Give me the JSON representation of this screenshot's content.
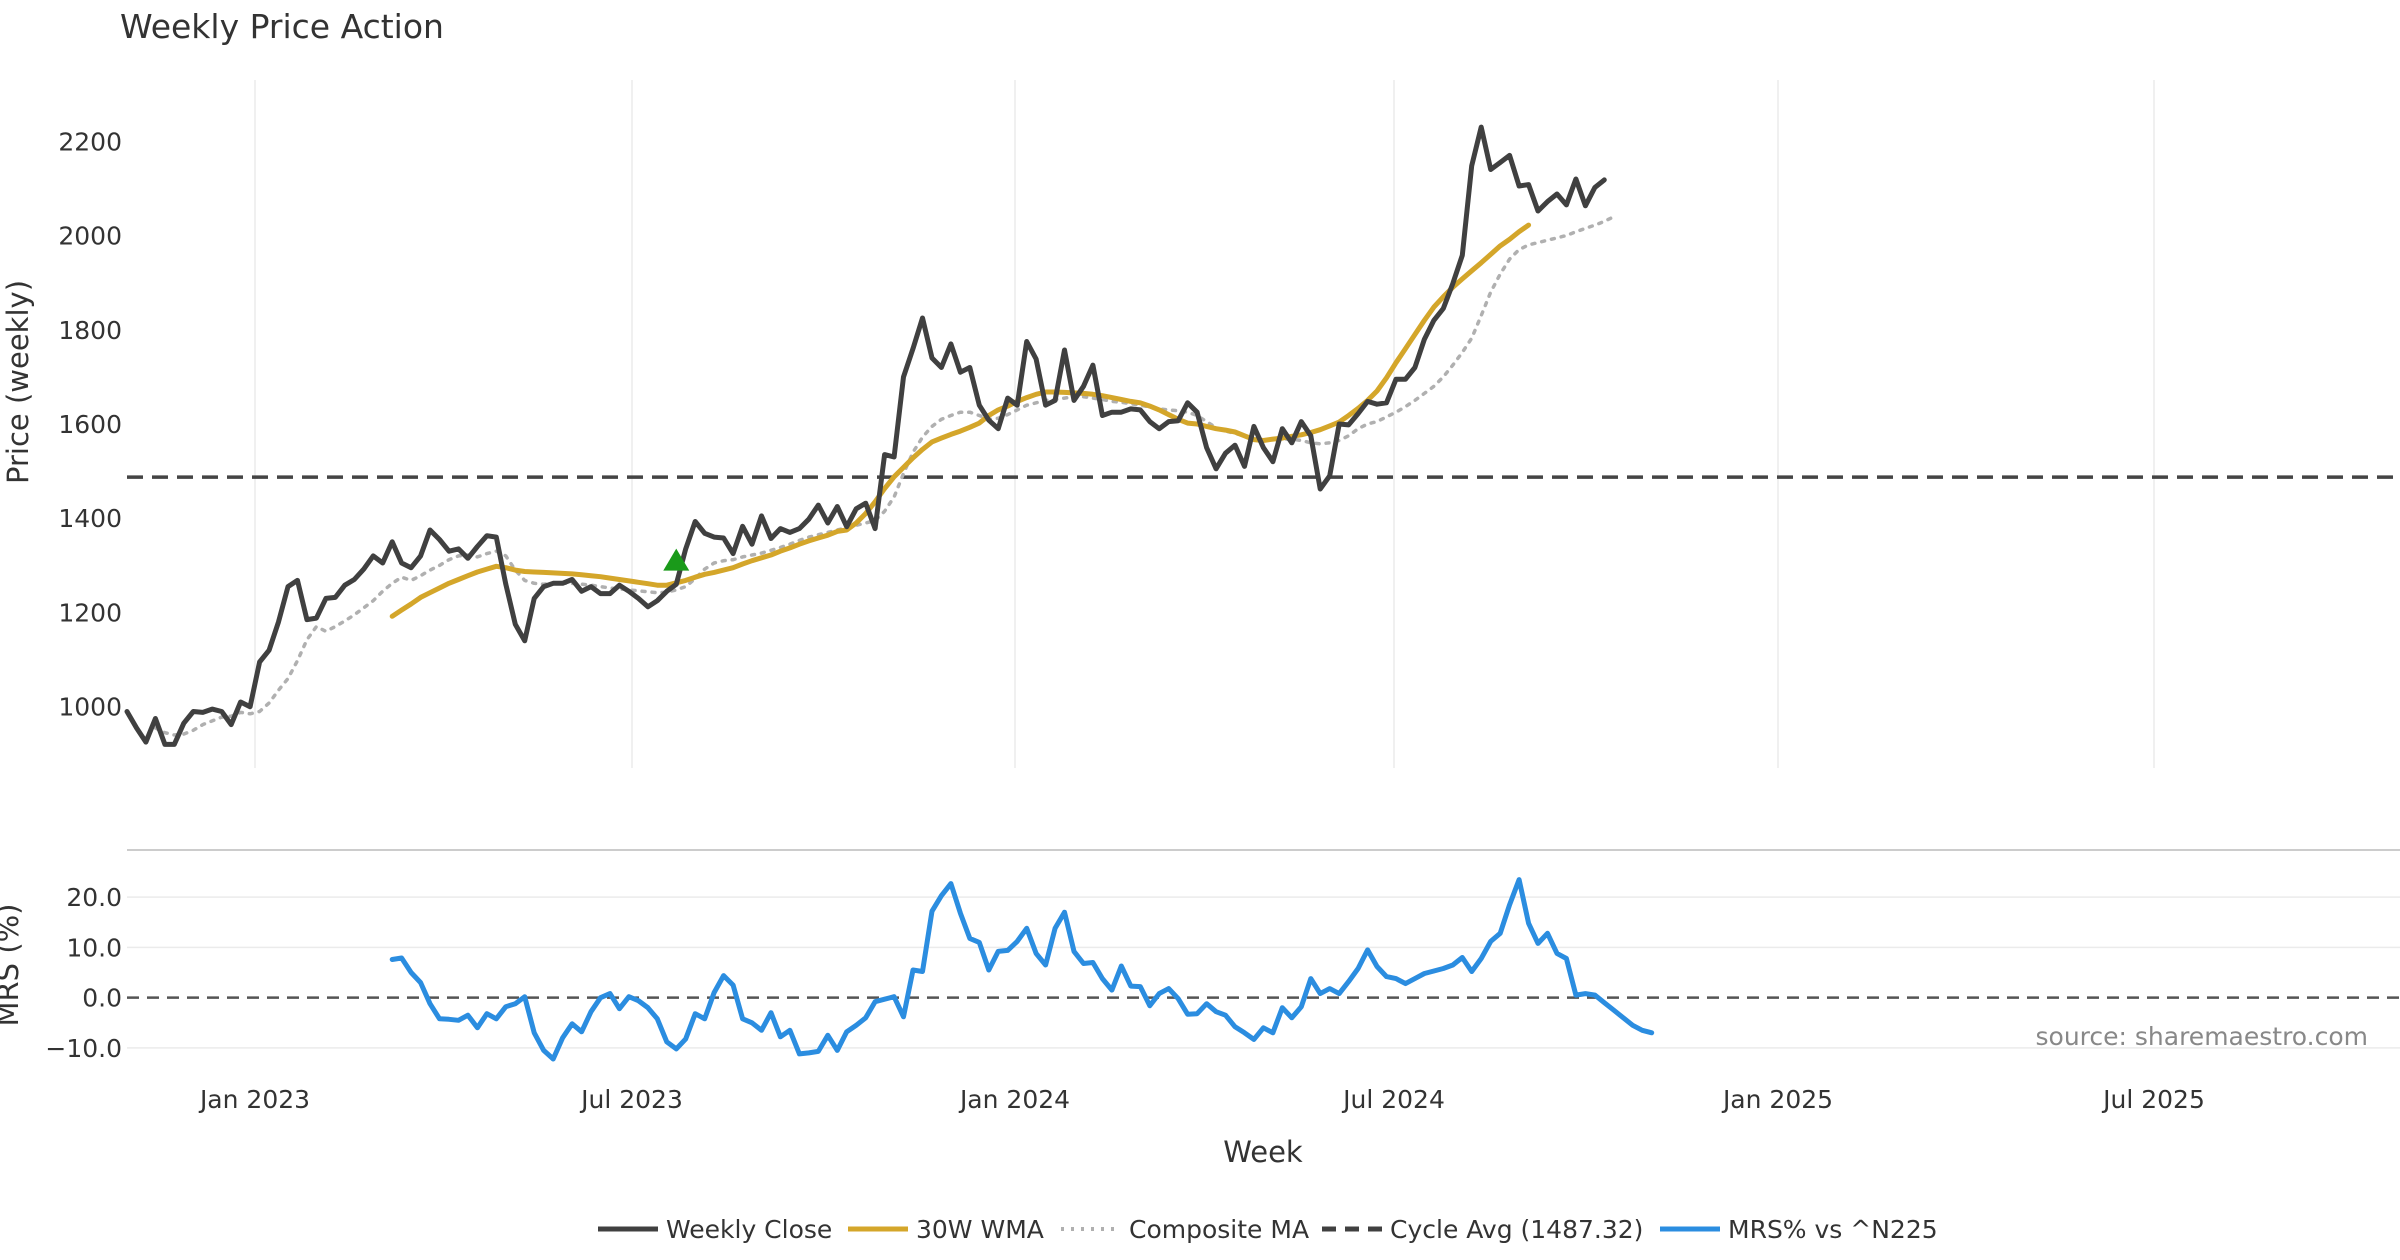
{
  "chart_data": {
    "title": "Weekly Price Action",
    "source": "source: sharemaestro.com",
    "xlabel": "Week",
    "x_ticks": [
      "Jan 2023",
      "Jul 2023",
      "Jan 2024",
      "Jul 2024",
      "Jan 2025",
      "Jul 2025"
    ],
    "price_panel": {
      "type": "line",
      "ylabel": "Price (weekly)",
      "ylim": [
        870,
        2330
      ],
      "y_ticks": [
        1000,
        1200,
        1400,
        1600,
        1800,
        2000,
        2200
      ],
      "cycle_avg": 1487.32,
      "signal_marker": {
        "week": 58,
        "value": 1310,
        "shape": "triangle-up",
        "color": "#1a9a1a"
      },
      "series": [
        {
          "name": "Weekly Close",
          "color": "#404040",
          "style": "solid",
          "start_week": 0,
          "values": [
            990,
            955,
            925,
            975,
            920,
            920,
            965,
            990,
            988,
            995,
            990,
            962,
            1010,
            1000,
            1095,
            1120,
            1180,
            1255,
            1268,
            1185,
            1188,
            1230,
            1232,
            1258,
            1270,
            1292,
            1320,
            1305,
            1350,
            1305,
            1295,
            1320,
            1375,
            1355,
            1330,
            1335,
            1315,
            1340,
            1363,
            1360,
            1260,
            1175,
            1140,
            1230,
            1255,
            1262,
            1262,
            1270,
            1245,
            1255,
            1240,
            1240,
            1258,
            1245,
            1230,
            1212,
            1225,
            1245,
            1260,
            1335,
            1393,
            1368,
            1360,
            1358,
            1325,
            1383,
            1345,
            1405,
            1357,
            1378,
            1370,
            1378,
            1398,
            1428,
            1390,
            1425,
            1382,
            1420,
            1432,
            1378,
            1535,
            1530,
            1700,
            1760,
            1825,
            1740,
            1720,
            1770,
            1710,
            1720,
            1640,
            1608,
            1590,
            1655,
            1640,
            1775,
            1738,
            1640,
            1650,
            1757,
            1650,
            1680,
            1725,
            1618,
            1625,
            1625,
            1632,
            1630,
            1605,
            1590,
            1605,
            1607,
            1645,
            1625,
            1550,
            1505,
            1538,
            1555,
            1510,
            1595,
            1550,
            1520,
            1590,
            1560,
            1605,
            1575,
            1462,
            1490,
            1600,
            1598,
            1622,
            1648,
            1642,
            1645,
            1695,
            1695,
            1720,
            1780,
            1820,
            1845,
            1898,
            1958,
            2148,
            2230,
            2140,
            2155,
            2170,
            2105,
            2108,
            2052,
            2072,
            2088,
            2065,
            2120,
            2063,
            2102,
            2118
          ]
        },
        {
          "name": "30W WMA",
          "color": "#d4a62a",
          "style": "solid",
          "start_week": 28,
          "values": [
            1192,
            1205,
            1218,
            1232,
            1242,
            1252,
            1262,
            1270,
            1278,
            1286,
            1292,
            1298,
            1295,
            1290,
            1287,
            1286,
            1285,
            1284,
            1283,
            1282,
            1280,
            1278,
            1276,
            1273,
            1270,
            1267,
            1264,
            1261,
            1258,
            1258,
            1263,
            1268,
            1275,
            1281,
            1285,
            1290,
            1295,
            1303,
            1310,
            1316,
            1322,
            1330,
            1337,
            1345,
            1352,
            1358,
            1364,
            1372,
            1375,
            1390,
            1410,
            1435,
            1463,
            1488,
            1508,
            1528,
            1546,
            1562,
            1570,
            1578,
            1585,
            1593,
            1602,
            1618,
            1630,
            1638,
            1648,
            1656,
            1663,
            1668,
            1668,
            1667,
            1666,
            1665,
            1663,
            1660,
            1656,
            1652,
            1648,
            1645,
            1638,
            1630,
            1620,
            1610,
            1602,
            1600,
            1595,
            1590,
            1587,
            1583,
            1575,
            1567,
            1565,
            1568,
            1570,
            1574,
            1577,
            1582,
            1588,
            1596,
            1604,
            1618,
            1633,
            1650,
            1670,
            1698,
            1730,
            1760,
            1790,
            1820,
            1848,
            1870,
            1890,
            1908,
            1925,
            1942,
            1960,
            1978,
            1992,
            2008,
            2022
          ]
        },
        {
          "name": "Composite MA",
          "color": "#b0b0b0",
          "style": "dotted",
          "start_week": 3,
          "values": [
            955,
            945,
            940,
            942,
            950,
            962,
            970,
            978,
            980,
            988,
            985,
            990,
            1008,
            1035,
            1060,
            1098,
            1142,
            1170,
            1160,
            1170,
            1182,
            1195,
            1210,
            1225,
            1245,
            1262,
            1275,
            1268,
            1278,
            1290,
            1300,
            1312,
            1320,
            1322,
            1318,
            1325,
            1330,
            1320,
            1290,
            1268,
            1262,
            1260,
            1262,
            1262,
            1262,
            1260,
            1258,
            1255,
            1252,
            1250,
            1248,
            1246,
            1244,
            1242,
            1243,
            1248,
            1255,
            1272,
            1292,
            1305,
            1310,
            1312,
            1318,
            1322,
            1326,
            1332,
            1338,
            1345,
            1353,
            1360,
            1365,
            1370,
            1375,
            1380,
            1385,
            1390,
            1395,
            1415,
            1445,
            1495,
            1540,
            1572,
            1595,
            1610,
            1618,
            1625,
            1625,
            1618,
            1610,
            1612,
            1620,
            1630,
            1640,
            1645,
            1650,
            1652,
            1655,
            1658,
            1658,
            1655,
            1652,
            1648,
            1646,
            1643,
            1640,
            1636,
            1632,
            1630,
            1628,
            1625,
            1618,
            1605,
            1592,
            1585,
            1580,
            1575,
            1570,
            1568,
            1565,
            1568,
            1568,
            1565,
            1560,
            1558,
            1560,
            1565,
            1575,
            1590,
            1600,
            1605,
            1615,
            1625,
            1637,
            1650,
            1665,
            1680,
            1700,
            1725,
            1752,
            1782,
            1830,
            1880,
            1918,
            1950,
            1970,
            1980,
            1985,
            1990,
            1995,
            2000,
            2008,
            2015,
            2022,
            2030,
            2040
          ]
        }
      ]
    },
    "mrs_panel": {
      "type": "line",
      "ylabel": "MRS (%)",
      "ylim": [
        -14,
        27
      ],
      "y_ticks": [
        "20.0",
        "10.0",
        "0.0",
        "−10.0"
      ],
      "series": [
        {
          "name": "MRS% vs ^N225",
          "color": "#2b8de0",
          "style": "solid",
          "start_week": 28,
          "values": [
            7.6,
            7.9,
            5.0,
            3.0,
            -1.2,
            -4.2,
            -4.3,
            -4.5,
            -3.5,
            -6.0,
            -3.2,
            -4.2,
            -1.8,
            -1.2,
            0.2,
            -7.0,
            -10.5,
            -12.2,
            -8.0,
            -5.2,
            -6.8,
            -2.8,
            0.0,
            0.8,
            -2.2,
            0.2,
            -0.6,
            -2.0,
            -4.2,
            -8.8,
            -10.2,
            -8.2,
            -3.2,
            -4.2,
            1.0,
            4.4,
            2.5,
            -4.2,
            -5.0,
            -6.5,
            -3.0,
            -7.8,
            -6.5,
            -11.2,
            -11.0,
            -10.7,
            -7.5,
            -10.5,
            -6.8,
            -5.5,
            -4.0,
            -0.8,
            -0.3,
            0.2,
            -3.8,
            5.5,
            5.2,
            17.2,
            20.3,
            22.7,
            16.8,
            11.8,
            11.0,
            5.5,
            9.2,
            9.4,
            11.2,
            13.8,
            8.8,
            6.5,
            13.8,
            17.0,
            9.2,
            6.8,
            7.0,
            3.8,
            1.5,
            6.3,
            2.3,
            2.2,
            -1.6,
            0.8,
            1.8,
            -0.2,
            -3.3,
            -3.2,
            -1.2,
            -2.8,
            -3.5,
            -5.8,
            -7.0,
            -8.3,
            -6.0,
            -7.0,
            -2.0,
            -4.0,
            -1.8,
            3.8,
            0.8,
            1.8,
            0.8,
            3.2,
            5.8,
            9.5,
            6.2,
            4.2,
            3.8,
            2.8,
            3.8,
            4.8,
            5.3,
            5.8,
            6.5,
            8.0,
            5.2,
            7.8,
            11.2,
            12.8,
            18.5,
            23.5,
            14.8,
            10.8,
            12.8,
            8.8,
            7.8,
            0.5,
            0.8,
            0.5,
            -1.0,
            -2.5,
            -4.0,
            -5.5,
            -6.5,
            -7.0
          ]
        }
      ]
    },
    "legend": {
      "position": "bottom-center",
      "entries": [
        {
          "label": "Weekly Close",
          "color": "#404040",
          "style": "solid"
        },
        {
          "label": "30W WMA",
          "color": "#d4a62a",
          "style": "solid"
        },
        {
          "label": "Composite MA",
          "color": "#b0b0b0",
          "style": "dotted"
        },
        {
          "label": "Cycle Avg (1487.32)",
          "color": "#404040",
          "style": "dashed"
        },
        {
          "label": "MRS% vs ^N225",
          "color": "#2b8de0",
          "style": "solid"
        }
      ]
    }
  }
}
